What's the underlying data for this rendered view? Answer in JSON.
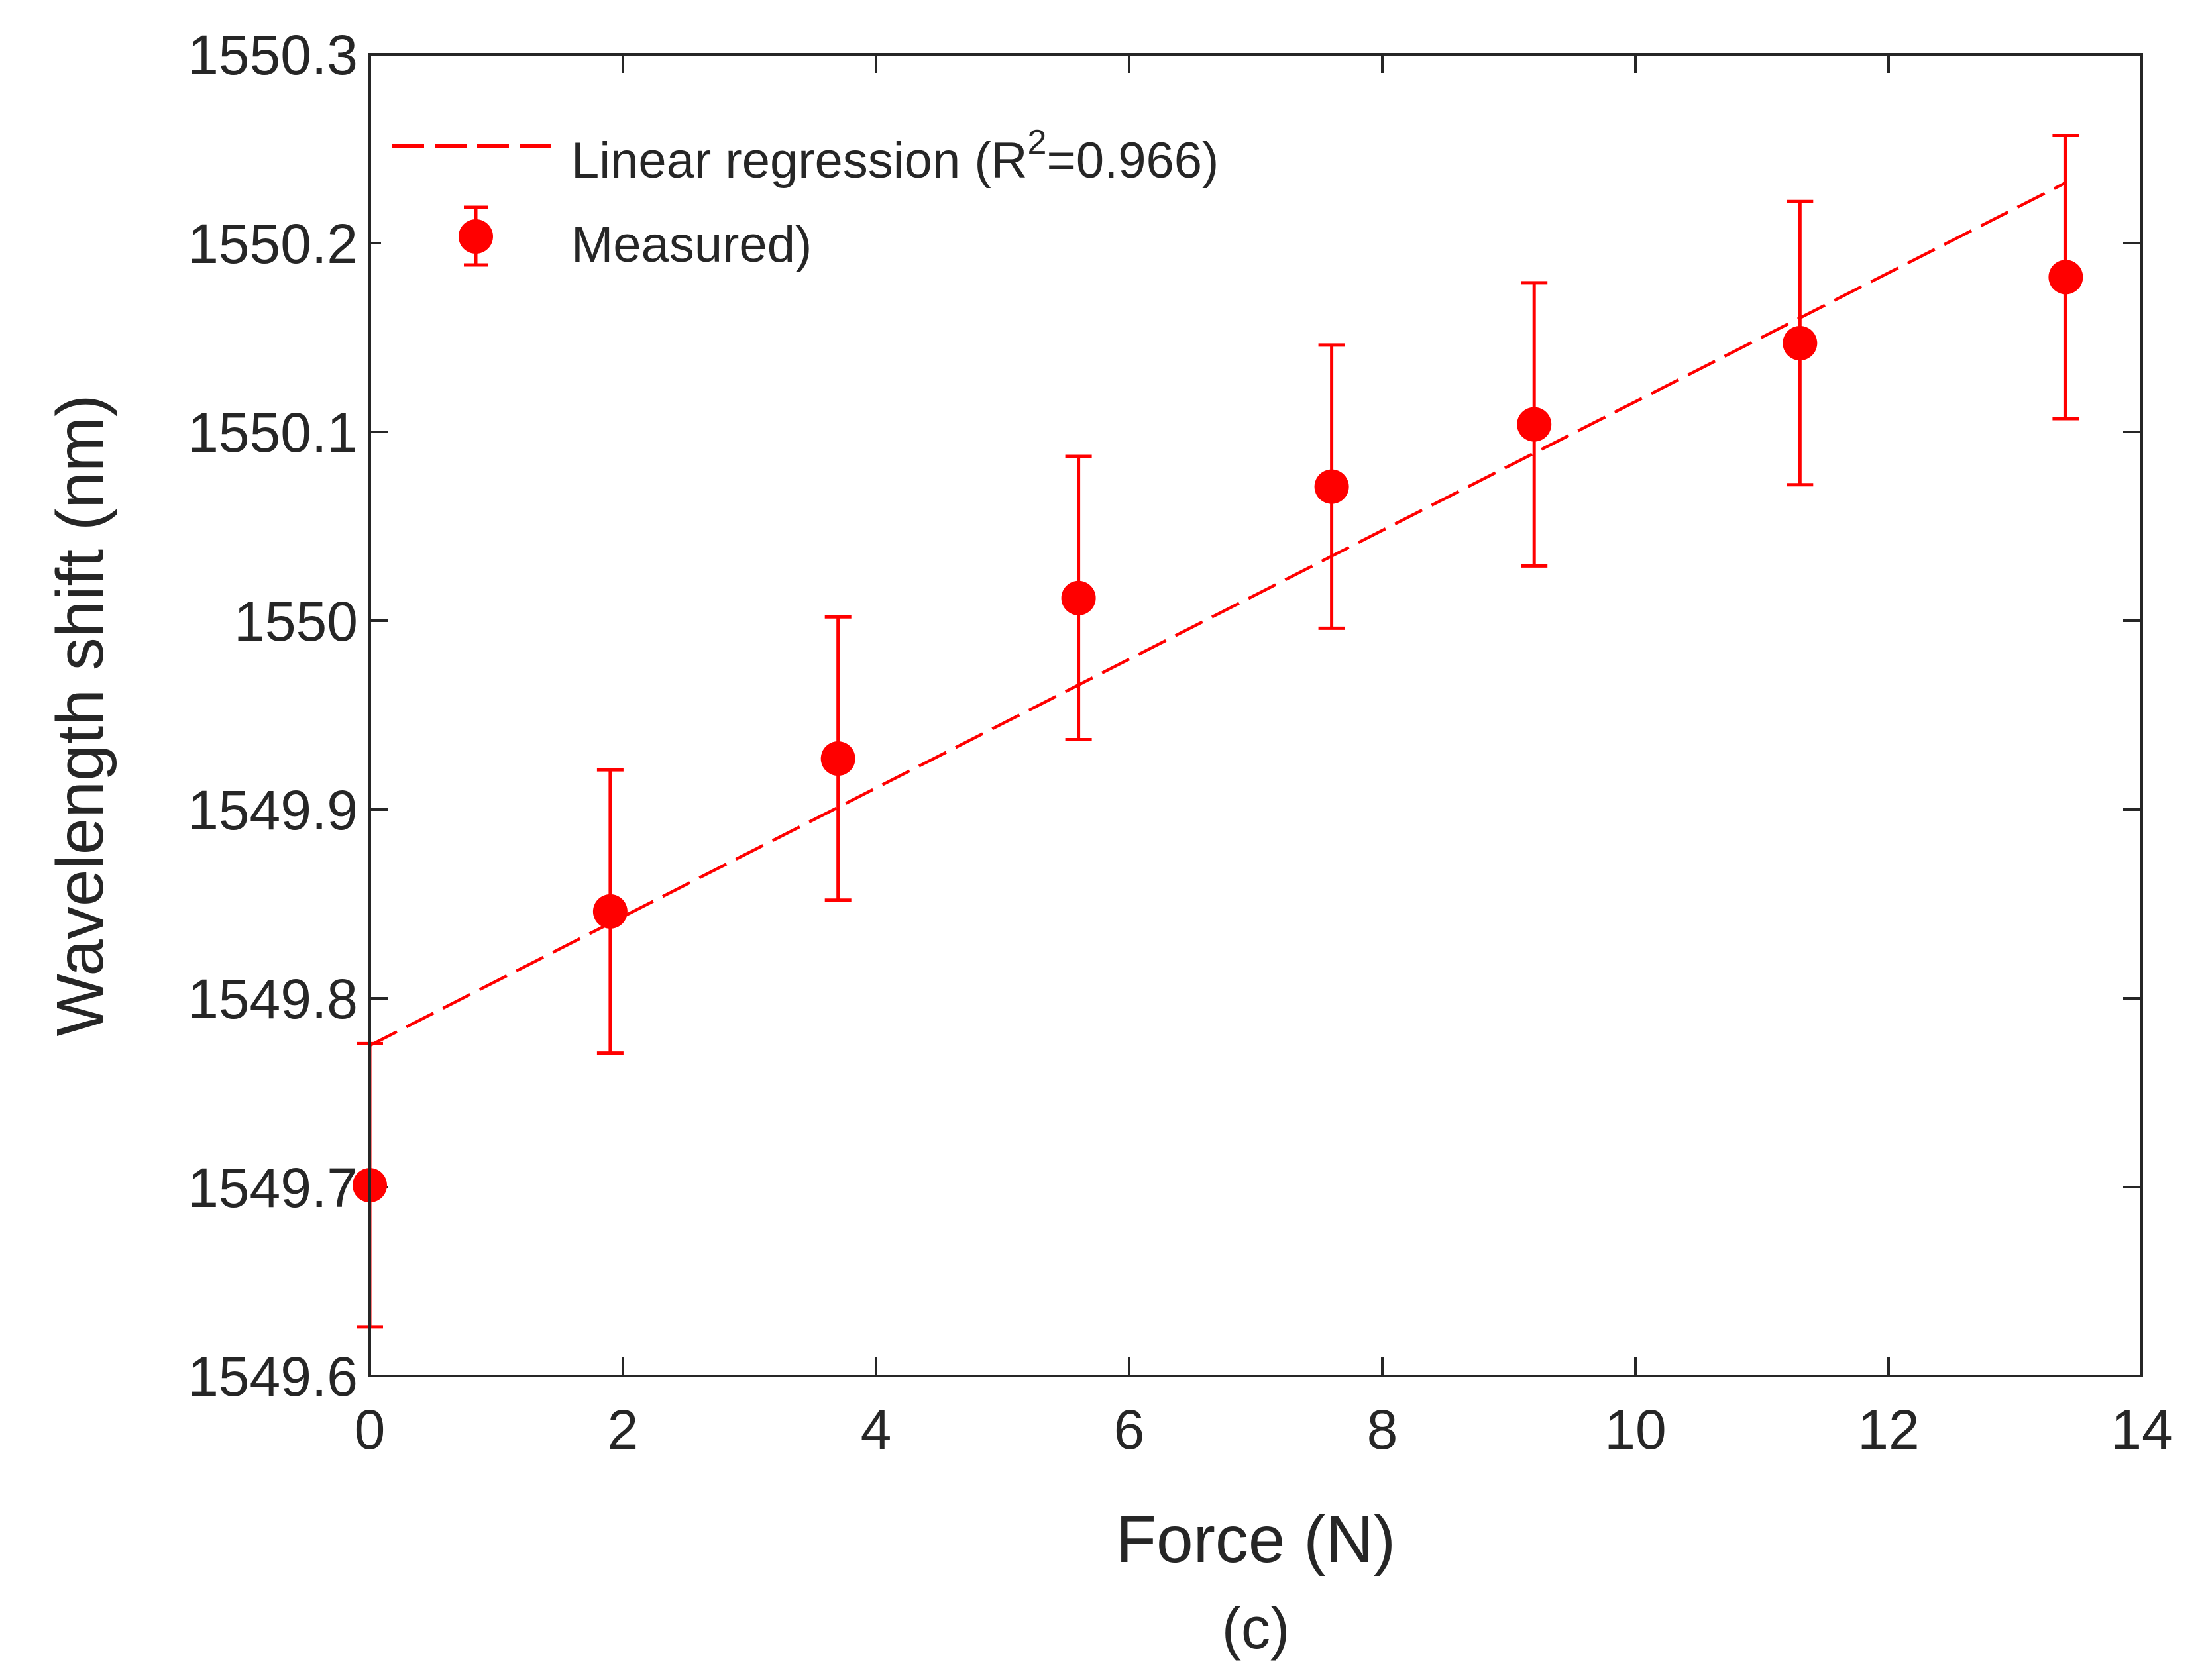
{
  "chart_data": {
    "type": "scatter",
    "xlabel": "Force (N)",
    "ylabel": "Wavelength shift (nm)",
    "caption": "(c)",
    "xlim": [
      0,
      14
    ],
    "ylim": [
      1549.6,
      1550.3
    ],
    "xticks": [
      0,
      2,
      4,
      6,
      8,
      10,
      12,
      14
    ],
    "xtick_labels": [
      "0",
      "2",
      "4",
      "6",
      "8",
      "10",
      "12",
      "14"
    ],
    "yticks": [
      1549.6,
      1549.7,
      1549.8,
      1549.9,
      1550,
      1550.1,
      1550.2,
      1550.3
    ],
    "ytick_labels": [
      "1549.6",
      "1549.7",
      "1549.8",
      "1549.9",
      "1550",
      "1550.1",
      "1550.2",
      "1550.3"
    ],
    "grid": false,
    "legend_position": "top-left",
    "color": "#ff0000",
    "series": [
      {
        "name": "Linear regression (R",
        "name_sup": "2",
        "name_suffix": "=0.966)",
        "kind": "dashed-line",
        "x": [
          0,
          13.4
        ],
        "y": [
          1549.775,
          1550.232
        ]
      },
      {
        "name": "Measured)",
        "kind": "points-with-errorbars",
        "x": [
          0,
          1.9,
          3.7,
          5.6,
          7.6,
          9.2,
          11.3,
          13.4
        ],
        "y": [
          1549.701,
          1549.846,
          1549.927,
          1550.012,
          1550.071,
          1550.104,
          1550.147,
          1550.182
        ],
        "err": [
          0.075,
          0.075,
          0.075,
          0.075,
          0.075,
          0.075,
          0.075,
          0.075
        ]
      }
    ]
  }
}
